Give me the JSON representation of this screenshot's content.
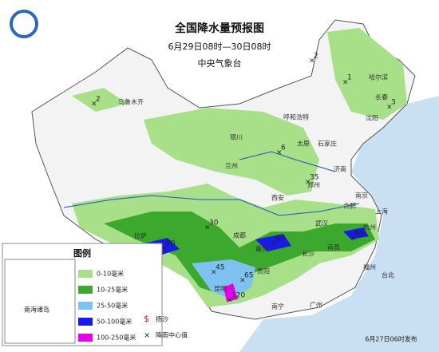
{
  "header": {
    "title": "全国降水量预报图",
    "period": "6月29日08时—30日08时",
    "issuer": "中央气象台"
  },
  "legend": {
    "title": "图例",
    "items": [
      "0-10毫米",
      "10-25毫米",
      "25-50毫米",
      "50-100毫米",
      "100-250毫米"
    ],
    "symbols": [
      "扬沙",
      "降雨中心值"
    ]
  },
  "inset": "南海诸岛",
  "cities": [
    "乌鲁木齐",
    "哈尔滨",
    "长春",
    "沈阳",
    "呼和浩特",
    "太原",
    "石家庄",
    "济南",
    "银川",
    "兰州",
    "西安",
    "郑州",
    "南京",
    "合肥",
    "上海",
    "杭州",
    "武汉",
    "拉萨",
    "成都",
    "重庆",
    "长沙",
    "南昌",
    "贵阳",
    "昆明",
    "福州",
    "台北",
    "广州",
    "南宁"
  ],
  "centers": [
    2,
    2,
    1,
    3,
    6,
    35,
    30,
    90,
    90,
    80,
    45,
    65,
    120
  ],
  "footer": "6月27日06时发布"
}
